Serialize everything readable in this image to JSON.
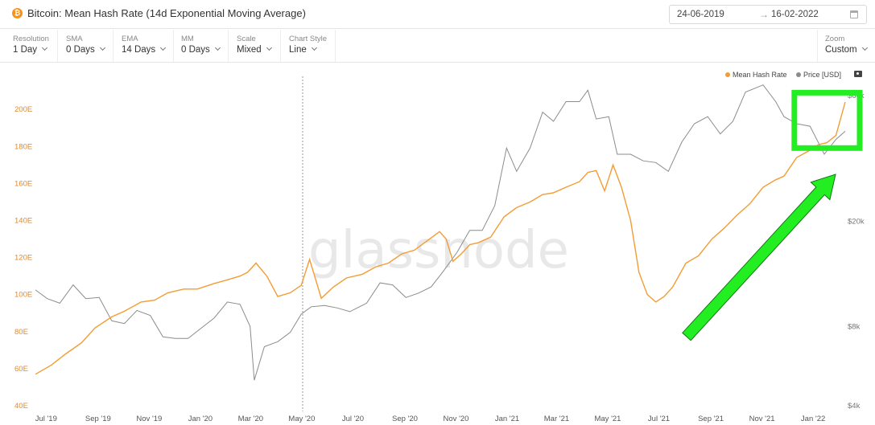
{
  "header": {
    "logo_glyph": "₿",
    "title": "Bitcoin: Mean Hash Rate (14d Exponential Moving Average)",
    "date_from": "24-06-2019",
    "date_arrow": "→",
    "date_to": "16-02-2022"
  },
  "controls": [
    {
      "label": "Resolution",
      "value": "1 Day"
    },
    {
      "label": "SMA",
      "value": "0 Days"
    },
    {
      "label": "EMA",
      "value": "14 Days"
    },
    {
      "label": "MM",
      "value": "0 Days"
    },
    {
      "label": "Scale",
      "value": "Mixed"
    },
    {
      "label": "Chart Style",
      "value": "Line"
    },
    {
      "label": "Zoom",
      "value": "Custom"
    }
  ],
  "legend": {
    "hash": "Mean Hash Rate",
    "price": "Price [USD]"
  },
  "watermark": "glassnode",
  "colors": {
    "hash": "#f39c34",
    "price": "#8c8c8c",
    "annotation": "#22ee22"
  },
  "icons": [
    "bitcoin-logo-icon",
    "calendar-icon",
    "chevron-down-icon",
    "camera-icon"
  ],
  "chart_data": {
    "type": "line",
    "x_start": "2019-06-24",
    "x_end": "2022-02-16",
    "x_ticks": [
      "Jul '19",
      "Sep '19",
      "Nov '19",
      "Jan '20",
      "Mar '20",
      "May '20",
      "Jul '20",
      "Sep '20",
      "Nov '20",
      "Jan '21",
      "Mar '21",
      "May '21",
      "Jul '21",
      "Sep '21",
      "Nov '21",
      "Jan '22"
    ],
    "y_left": {
      "ticks": [
        "40E",
        "60E",
        "80E",
        "100E",
        "120E",
        "140E",
        "160E",
        "180E",
        "200E"
      ],
      "range": [
        40,
        205
      ],
      "scale": "linear"
    },
    "y_right": {
      "ticks": [
        "$4k",
        "$8k",
        "$20k",
        "$60k"
      ],
      "values": [
        4000,
        8000,
        20000,
        60000
      ],
      "scale": "log"
    },
    "series": [
      {
        "name": "Mean Hash Rate",
        "axis": "left",
        "x": [
          "2019-06-26",
          "2019-07-15",
          "2019-08-01",
          "2019-08-20",
          "2019-09-05",
          "2019-09-25",
          "2019-10-10",
          "2019-10-30",
          "2019-11-15",
          "2019-12-01",
          "2019-12-20",
          "2020-01-05",
          "2020-01-25",
          "2020-02-10",
          "2020-02-25",
          "2020-03-05",
          "2020-03-15",
          "2020-03-28",
          "2020-04-10",
          "2020-04-25",
          "2020-05-08",
          "2020-05-18",
          "2020-06-01",
          "2020-06-15",
          "2020-07-01",
          "2020-07-20",
          "2020-08-05",
          "2020-08-20",
          "2020-09-05",
          "2020-09-20",
          "2020-10-05",
          "2020-10-20",
          "2020-10-28",
          "2020-11-05",
          "2020-11-15",
          "2020-11-25",
          "2020-12-05",
          "2020-12-20",
          "2021-01-05",
          "2021-01-20",
          "2021-02-05",
          "2021-02-20",
          "2021-03-05",
          "2021-03-20",
          "2021-04-05",
          "2021-04-15",
          "2021-04-25",
          "2021-05-05",
          "2021-05-15",
          "2021-05-25",
          "2021-06-05",
          "2021-06-15",
          "2021-06-25",
          "2021-07-05",
          "2021-07-15",
          "2021-07-25",
          "2021-08-10",
          "2021-08-25",
          "2021-09-10",
          "2021-09-25",
          "2021-10-10",
          "2021-10-25",
          "2021-11-10",
          "2021-11-25",
          "2021-12-05",
          "2021-12-20",
          "2022-01-05",
          "2022-01-15",
          "2022-01-25",
          "2022-02-05",
          "2022-02-16"
        ],
        "values": [
          57,
          62,
          68,
          74,
          82,
          88,
          91,
          96,
          97,
          101,
          103,
          103,
          106,
          108,
          110,
          112,
          117,
          110,
          99,
          101,
          105,
          119,
          98,
          104,
          109,
          111,
          115,
          117,
          122,
          124,
          129,
          134,
          130,
          118,
          122,
          127,
          128,
          131,
          142,
          147,
          150,
          154,
          155,
          158,
          161,
          166,
          167,
          156,
          170,
          158,
          140,
          112,
          100,
          96,
          99,
          104,
          117,
          121,
          130,
          136,
          143,
          149,
          158,
          162,
          164,
          174,
          178,
          181,
          182,
          186,
          204
        ]
      },
      {
        "name": "Price [USD]",
        "axis": "right",
        "x": [
          "2019-06-26",
          "2019-07-10",
          "2019-07-25",
          "2019-08-10",
          "2019-08-25",
          "2019-09-10",
          "2019-09-25",
          "2019-10-10",
          "2019-10-25",
          "2019-11-10",
          "2019-11-25",
          "2019-12-10",
          "2019-12-25",
          "2020-01-10",
          "2020-01-25",
          "2020-02-10",
          "2020-02-25",
          "2020-03-08",
          "2020-03-13",
          "2020-03-25",
          "2020-04-10",
          "2020-04-25",
          "2020-05-08",
          "2020-05-20",
          "2020-06-05",
          "2020-06-20",
          "2020-07-05",
          "2020-07-25",
          "2020-08-10",
          "2020-08-25",
          "2020-09-10",
          "2020-09-25",
          "2020-10-10",
          "2020-10-25",
          "2020-11-10",
          "2020-11-25",
          "2020-12-10",
          "2020-12-25",
          "2021-01-08",
          "2021-01-20",
          "2021-02-05",
          "2021-02-20",
          "2021-03-05",
          "2021-03-20",
          "2021-04-05",
          "2021-04-15",
          "2021-04-25",
          "2021-05-10",
          "2021-05-20",
          "2021-06-05",
          "2021-06-20",
          "2021-07-05",
          "2021-07-20",
          "2021-08-05",
          "2021-08-20",
          "2021-09-05",
          "2021-09-20",
          "2021-10-05",
          "2021-10-20",
          "2021-11-10",
          "2021-11-25",
          "2021-12-05",
          "2021-12-20",
          "2022-01-05",
          "2022-01-22",
          "2022-02-05",
          "2022-02-16"
        ],
        "values": [
          11000,
          10200,
          9800,
          11500,
          10200,
          10300,
          8400,
          8200,
          9200,
          8800,
          7300,
          7200,
          7200,
          7900,
          8600,
          9900,
          9700,
          8000,
          5000,
          6700,
          7000,
          7600,
          8900,
          9500,
          9600,
          9400,
          9100,
          9800,
          11700,
          11500,
          10300,
          10700,
          11300,
          13000,
          15300,
          18500,
          18500,
          23000,
          38000,
          31000,
          38000,
          52000,
          48000,
          57000,
          57000,
          63000,
          49000,
          50000,
          36000,
          36000,
          34000,
          33500,
          31000,
          40000,
          47000,
          50000,
          43000,
          48000,
          62000,
          66000,
          57000,
          50000,
          47000,
          46000,
          36000,
          41000,
          44000
        ]
      }
    ],
    "annotations": [
      {
        "type": "rectangle",
        "color": "#22ee22",
        "x": [
          "2021-12-25",
          "2022-02-16"
        ],
        "y": [
          180,
          206
        ]
      },
      {
        "type": "arrow",
        "color": "#22ee22",
        "direction": "up-right"
      }
    ],
    "grid": false,
    "legend_position": "top-right"
  }
}
